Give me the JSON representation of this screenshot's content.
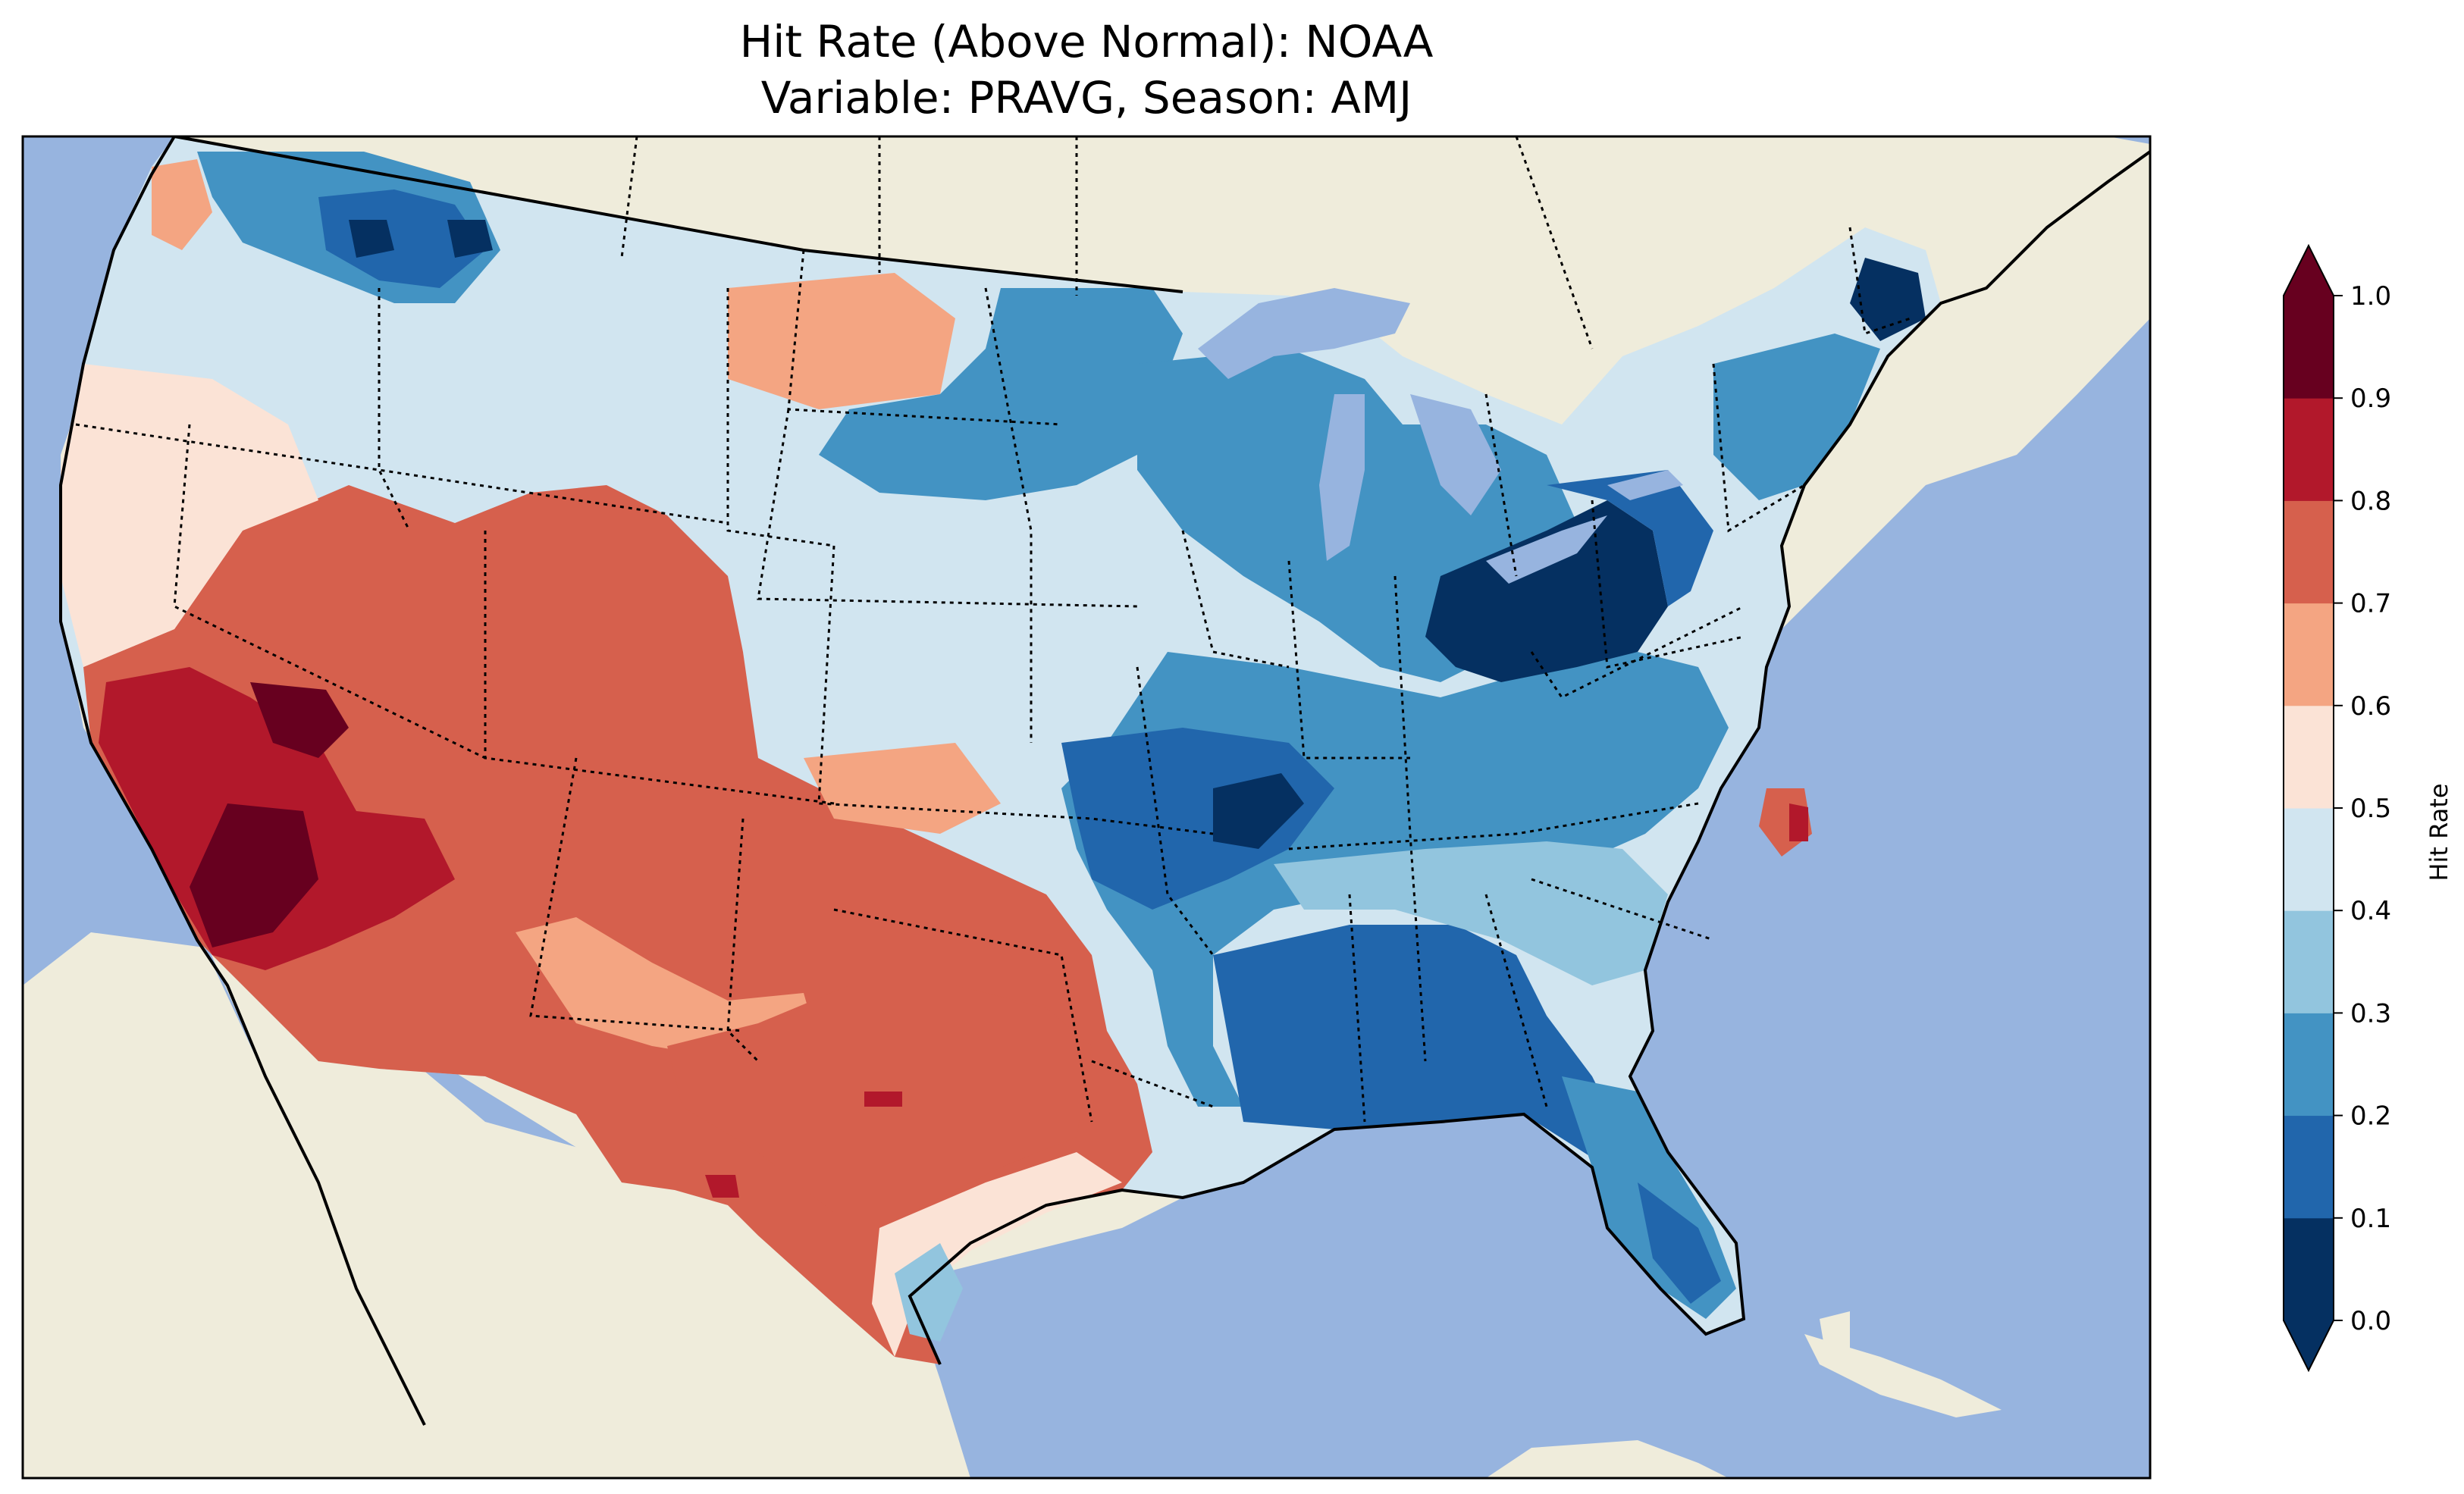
{
  "title": {
    "line1": "Hit Rate (Above Normal): NOAA",
    "line2": "Variable: PRAVG, Season: AMJ"
  },
  "colors": {
    "ocean": "#97b4df",
    "land": "#efecdb",
    "lakes": "#97b4df",
    "frame": "#000000"
  },
  "colorbar": {
    "label": "Hit Rate",
    "ticks": [
      "0.0",
      "0.1",
      "0.2",
      "0.3",
      "0.4",
      "0.5",
      "0.6",
      "0.7",
      "0.8",
      "0.9",
      "1.0"
    ],
    "bins": [
      "#053061",
      "#2166ac",
      "#4393c3",
      "#92c5de",
      "#d1e5f0",
      "#fbe3d6",
      "#f4a582",
      "#d6604d",
      "#b2182b",
      "#67001f"
    ],
    "extend_min_color": "#053061",
    "extend_max_color": "#67001f"
  },
  "hit_rate_regions": [
    {
      "region": "Pacific Northwest coast",
      "value": 0.55
    },
    {
      "region": "Washington / northern Idaho",
      "value": 0.25
    },
    {
      "region": "Oregon / Idaho interior",
      "value": 0.45
    },
    {
      "region": "Montana / northern Wyoming",
      "value": 0.45
    },
    {
      "region": "Eastern Montana / western Dakotas",
      "value": 0.65
    },
    {
      "region": "California / Nevada",
      "value": 0.85
    },
    {
      "region": "Southern California / southern Nevada",
      "value": 0.95
    },
    {
      "region": "Utah / Arizona / Colorado",
      "value": 0.75
    },
    {
      "region": "New Mexico / Oklahoma / Texas",
      "value": 0.75
    },
    {
      "region": "South Texas",
      "value": 0.55
    },
    {
      "region": "Central Plains",
      "value": 0.45
    },
    {
      "region": "Upper Midwest",
      "value": 0.25
    },
    {
      "region": "Missouri / Arkansas",
      "value": 0.15
    },
    {
      "region": "Ohio / Pennsylvania",
      "value": 0.05
    },
    {
      "region": "Lower Mississippi / Gulf states",
      "value": 0.25
    },
    {
      "region": "Southeast",
      "value": 0.35
    },
    {
      "region": "Florida",
      "value": 0.25
    },
    {
      "region": "Mid-Atlantic",
      "value": 0.35
    },
    {
      "region": "Maine",
      "value": 0.05
    },
    {
      "region": "Coastal North Carolina",
      "value": 0.85
    }
  ]
}
